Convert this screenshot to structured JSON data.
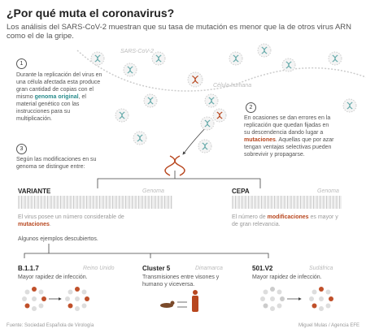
{
  "header": {
    "title": "¿Por qué muta el coronavirus?",
    "subtitle": "Los análisis del SARS-CoV-2 muestran que su tasa de mutación es menor que la de otros virus ARN como el de la gripe."
  },
  "diagram_labels": {
    "virus": "SARS-CoV-2",
    "cell": "Célula humana"
  },
  "steps": [
    {
      "number": "1",
      "before": "Durante la replicación del virus en una célula afectada esta produce gran cantidad de copias con el mismo ",
      "highlight": "genoma original",
      "after": ", el material genético con las instrucciones para su multiplicación."
    },
    {
      "number": "2",
      "before": "En ocasiones se dan errores en la replicación que quedan fijadas en su descendencia dando lugar a ",
      "highlight": "mutaciones",
      "after": ". Aquellas que por azar tengan ventajas selectivas pueden sobrevivir y propagarse."
    },
    {
      "number": "3",
      "before": "Según las modificaciones en su genoma se distingue entre:"
    }
  ],
  "types": [
    {
      "title": "VARIANTE",
      "bar_label": "Genoma",
      "before": "El virus posee un número considerable de ",
      "highlight": "mutaciones",
      "after": "."
    },
    {
      "title": "CEPA",
      "bar_label": "Genoma",
      "before": "El número de ",
      "highlight": "modificaciones",
      "after": " es mayor y de gran relevancia."
    }
  ],
  "examples_intro": "Algunos ejemplos descubiertos.",
  "examples": [
    {
      "name": "B.1.1.7",
      "country": "Reino Unido",
      "description": "Mayor rapidez de infección."
    },
    {
      "name": "Cluster 5",
      "country": "Dinamarca",
      "description": "Transmisiones entre visones y humano y viceversa."
    },
    {
      "name": "501.V2",
      "country": "Sudáfrica",
      "description": "Mayor rapidez de infección."
    }
  ],
  "footer": {
    "source": "Fuente: Sociedad Española de Virología",
    "credit": "Miguel Mulas / Agencia EFE"
  }
}
